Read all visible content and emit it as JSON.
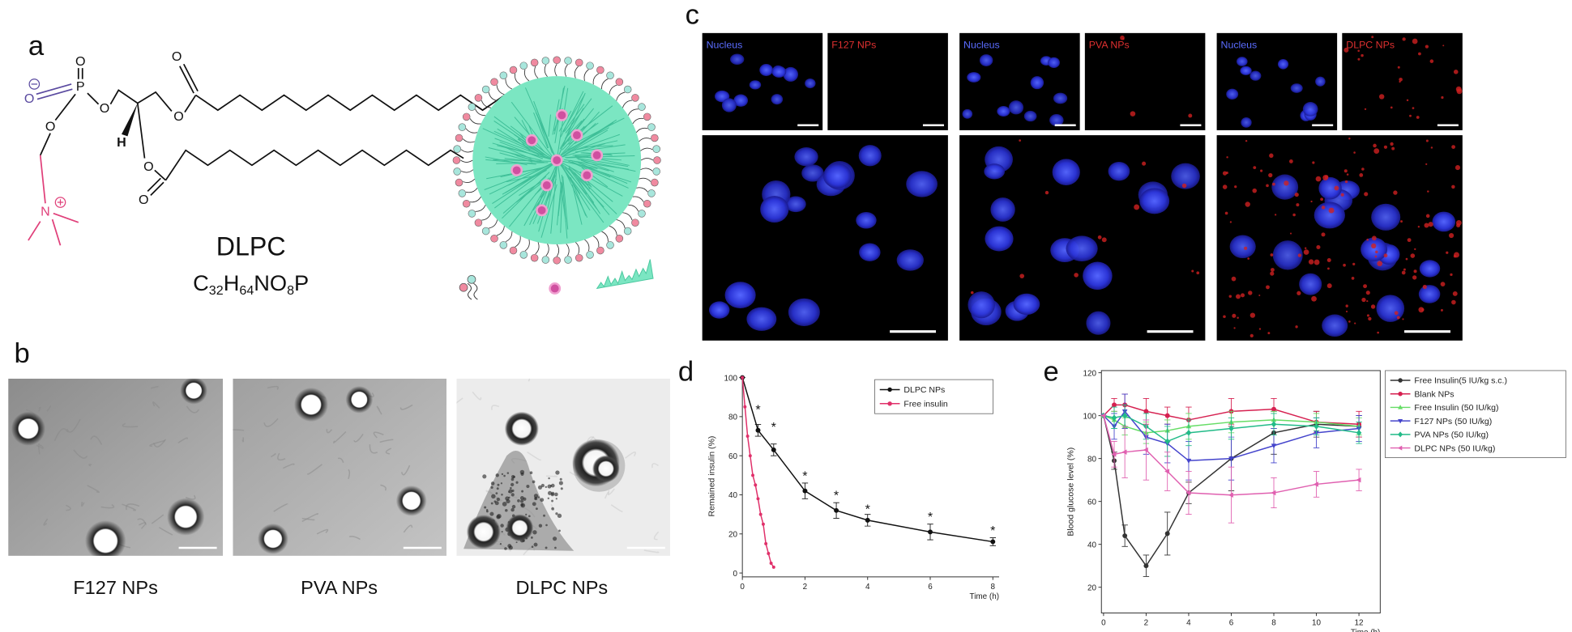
{
  "panel_labels": [
    "a",
    "b",
    "c",
    "d",
    "e"
  ],
  "panel_a": {
    "name": "DLPC",
    "formula": [
      "C",
      "32",
      "H",
      "64",
      "NO",
      "8",
      "P"
    ],
    "atoms": [
      "O",
      "O",
      "P",
      "O",
      "O",
      "N",
      "H",
      "O",
      "O",
      "O",
      "O"
    ]
  },
  "panel_b": {
    "captions": [
      "F127 NPs",
      "PVA NPs",
      "DLPC NPs"
    ]
  },
  "panel_c": {
    "groups": [
      [
        "Nucleus",
        "F127 NPs"
      ],
      [
        "Nucleus",
        "PVA NPs"
      ],
      [
        "Nucleus",
        "DLPC NPs"
      ]
    ]
  },
  "chart_data": [
    {
      "type": "line",
      "x_label": "Time (h)",
      "y_label": "Remained insulin (%)",
      "xlim": [
        0,
        8.2
      ],
      "ylim": [
        -2,
        101
      ],
      "xticks": [
        0,
        2,
        4,
        6,
        8
      ],
      "yticks": [
        0,
        20,
        40,
        60,
        80,
        100
      ],
      "legend": "upper right",
      "frame": false,
      "series": [
        {
          "name": "DLPC NPs",
          "color": "#111111",
          "marker": "circle",
          "x": [
            0,
            0.5,
            1,
            2,
            3,
            4,
            6,
            8
          ],
          "values": [
            100,
            73,
            63,
            42,
            32,
            27,
            21,
            16
          ],
          "errors": [
            0,
            3,
            3,
            4,
            4,
            3,
            4,
            2
          ]
        },
        {
          "name": "Free insulin",
          "color": "#e0306a",
          "marker": "circle",
          "x": [
            0,
            0.083,
            0.167,
            0.25,
            0.333,
            0.417,
            0.5,
            0.583,
            0.667,
            0.75,
            0.833,
            0.917,
            1
          ],
          "values": [
            100,
            85,
            70,
            60,
            50,
            45,
            38,
            30,
            25,
            15,
            10,
            5,
            3
          ]
        }
      ],
      "annotations": [
        {
          "text": "*",
          "x": 0.5,
          "y": 84
        },
        {
          "text": "*",
          "x": 1,
          "y": 75
        },
        {
          "text": "*",
          "x": 2,
          "y": 50
        },
        {
          "text": "*",
          "x": 3,
          "y": 40
        },
        {
          "text": "*",
          "x": 4,
          "y": 33
        },
        {
          "text": "*",
          "x": 6,
          "y": 29
        },
        {
          "text": "*",
          "x": 8,
          "y": 22
        }
      ]
    },
    {
      "type": "line",
      "x_label": "Time (h)",
      "y_label": "Blood glucose level (%)",
      "xlim": [
        -0.1,
        13
      ],
      "ylim": [
        8,
        121
      ],
      "xticks": [
        0,
        2,
        4,
        6,
        8,
        10,
        12
      ],
      "yticks": [
        20,
        40,
        60,
        80,
        100,
        120
      ],
      "legend": "outside right",
      "frame": true,
      "x": [
        0,
        0.5,
        1,
        2,
        3,
        4,
        6,
        8,
        10,
        12
      ],
      "series": [
        {
          "name": "Free Insulin(5 IU/kg s.c.)",
          "color": "#333333",
          "marker": "circle",
          "values": [
            100,
            79,
            44,
            30,
            45,
            64,
            80,
            92,
            96,
            95
          ],
          "errors": [
            0,
            4,
            5,
            5,
            10,
            5,
            15,
            10,
            6,
            5
          ]
        },
        {
          "name": "Blank NPs",
          "color": "#d62050",
          "marker": "circle",
          "values": [
            100,
            105,
            105,
            102,
            100,
            98,
            102,
            103,
            97,
            96
          ],
          "errors": [
            0,
            3,
            5,
            6,
            4,
            6,
            6,
            5,
            5,
            6
          ]
        },
        {
          "name": "Free Insulin (50 IU/kg)",
          "color": "#66dd66",
          "marker": "triangle",
          "values": [
            100,
            98,
            95,
            92,
            93,
            95,
            97,
            98,
            97,
            95
          ],
          "errors": [
            0,
            4,
            4,
            5,
            5,
            6,
            5,
            4,
            4,
            4
          ]
        },
        {
          "name": "F127 NPs (50 IU/kg)",
          "color": "#4444cc",
          "marker": "triangle-down",
          "values": [
            100,
            95,
            102,
            90,
            87,
            79,
            80,
            86,
            92,
            94
          ],
          "errors": [
            0,
            6,
            8,
            8,
            9,
            9,
            10,
            8,
            7,
            6
          ]
        },
        {
          "name": "PVA NPs (50 IU/kg)",
          "color": "#22bb88",
          "marker": "diamond",
          "values": [
            100,
            99,
            100,
            95,
            88,
            92,
            94,
            96,
            95,
            92
          ],
          "errors": [
            0,
            5,
            5,
            6,
            7,
            6,
            5,
            5,
            4,
            5
          ]
        },
        {
          "name": "DLPC NPs (50 IU/kg)",
          "color": "#e060b0",
          "marker": "triangle-left",
          "values": [
            100,
            82,
            83,
            84,
            74,
            64,
            63,
            64,
            68,
            70
          ],
          "errors": [
            0,
            6,
            12,
            14,
            9,
            10,
            13,
            7,
            6,
            5
          ]
        }
      ]
    }
  ]
}
